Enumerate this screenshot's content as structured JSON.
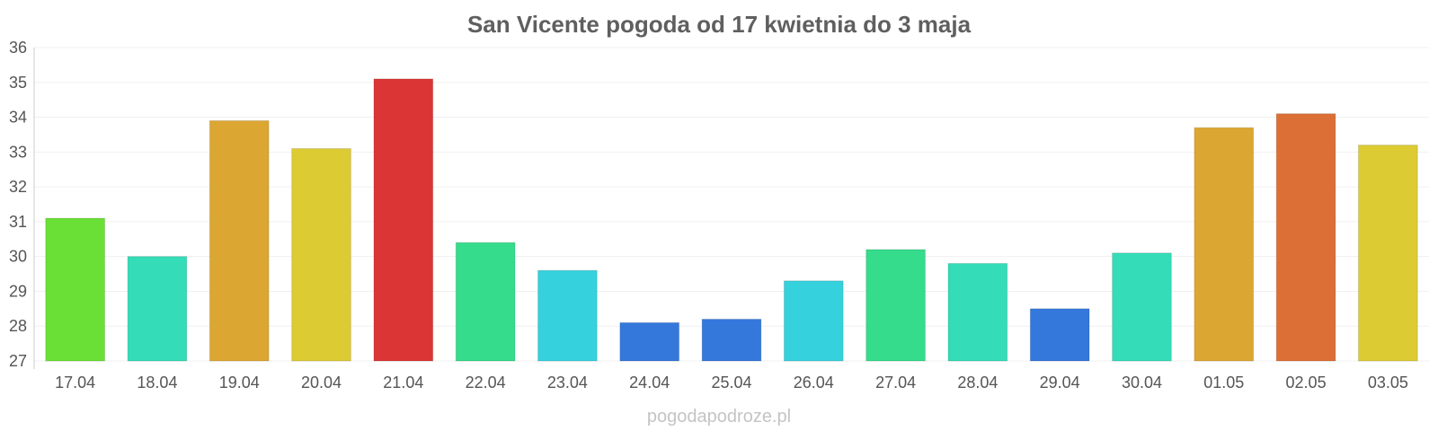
{
  "chart_data": {
    "type": "bar",
    "title": "San Vicente pogoda od 17 kwietnia do 3 maja",
    "categories": [
      "17.04",
      "18.04",
      "19.04",
      "20.04",
      "21.04",
      "22.04",
      "23.04",
      "24.04",
      "25.04",
      "26.04",
      "27.04",
      "28.04",
      "29.04",
      "30.04",
      "01.05",
      "02.05",
      "03.05"
    ],
    "values": [
      31.1,
      30.0,
      33.9,
      33.1,
      35.1,
      30.4,
      29.6,
      28.1,
      28.2,
      29.3,
      30.2,
      29.8,
      28.5,
      30.1,
      33.7,
      34.1,
      33.2
    ],
    "colors": [
      "#6adf35",
      "#34dcb7",
      "#dca632",
      "#dccb33",
      "#dc3535",
      "#35dc8b",
      "#35d1dc",
      "#3578dc",
      "#3578dc",
      "#35d1dc",
      "#35dc8b",
      "#34dcb7",
      "#3578dc",
      "#34dcb7",
      "#dca632",
      "#dc6f35",
      "#dccb33"
    ],
    "ylim": [
      27,
      36
    ],
    "yticks": [
      "27",
      "28",
      "29",
      "30",
      "31",
      "32",
      "33",
      "34",
      "35",
      "36"
    ],
    "grid": true,
    "xlabel": "",
    "ylabel": ""
  },
  "watermark": "pogodapodroze.pl"
}
